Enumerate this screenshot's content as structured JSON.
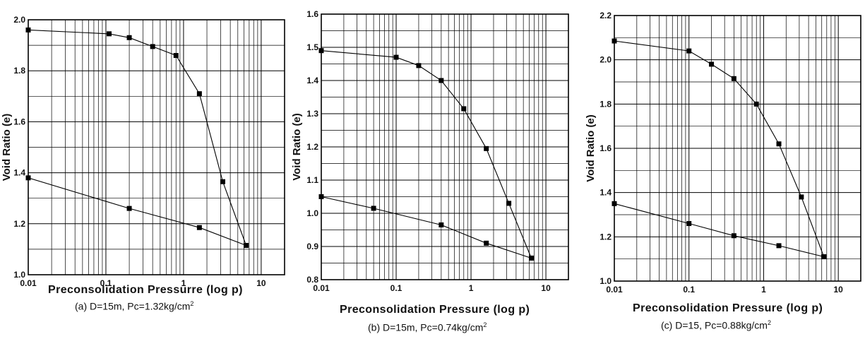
{
  "chart_data": [
    {
      "type": "line",
      "xscale": "log",
      "xlim": [
        0.01,
        20
      ],
      "ylim": [
        1.0,
        2.0
      ],
      "xticks": [
        "0.01",
        "0.1",
        "1",
        "10"
      ],
      "yticks": [
        "1.0",
        "1.2",
        "1.4",
        "1.6",
        "1.8",
        "2.0"
      ],
      "ylabel": "Void Ratio (e)",
      "xlabel": "Preconsolidation Pressurre (log p)",
      "caption": "(a) D=15m, Pc=1.32kg/cm",
      "caption_sup": "2",
      "grid": true,
      "series": [
        {
          "x": [
            0.01,
            0.11,
            0.2,
            0.4,
            0.8,
            1.6,
            3.2,
            6.4
          ],
          "y": [
            1.96,
            1.945,
            1.93,
            1.895,
            1.86,
            1.71,
            1.365,
            1.115
          ]
        },
        {
          "x": [
            0.01,
            0.2,
            1.6,
            6.4
          ],
          "y": [
            1.38,
            1.26,
            1.185,
            1.115
          ]
        }
      ]
    },
    {
      "type": "line",
      "xscale": "log",
      "xlim": [
        0.01,
        20
      ],
      "ylim": [
        0.8,
        1.6
      ],
      "xticks": [
        "0.01",
        "0.1",
        "1",
        "10"
      ],
      "yticks": [
        "0.8",
        "0.9",
        "1.0",
        "1.1",
        "1.2",
        "1.3",
        "1.4",
        "1.5",
        "1.6"
      ],
      "ylabel": "Void Ratio (e)",
      "xlabel": "Preconsolidation Pressure (log p)",
      "caption": "(b) D=15m, Pc=0.74kg/cm",
      "caption_sup": "2",
      "grid": true,
      "series": [
        {
          "x": [
            0.01,
            0.1,
            0.2,
            0.4,
            0.8,
            1.6,
            3.2,
            6.4
          ],
          "y": [
            1.49,
            1.47,
            1.445,
            1.4,
            1.315,
            1.195,
            1.03,
            0.865
          ]
        },
        {
          "x": [
            0.01,
            0.05,
            0.4,
            1.6,
            6.4
          ],
          "y": [
            1.05,
            1.015,
            0.965,
            0.91,
            0.865
          ]
        }
      ]
    },
    {
      "type": "line",
      "xscale": "log",
      "xlim": [
        0.01,
        20
      ],
      "ylim": [
        1.0,
        2.2
      ],
      "xticks": [
        "0.01",
        "0.1",
        "1",
        "10"
      ],
      "yticks": [
        "1.0",
        "1.2",
        "1.4",
        "1.6",
        "1.8",
        "2.0",
        "2.2"
      ],
      "ylabel": "Void Ratio (e)",
      "xlabel": "Preconsolidation Pressure (log p)",
      "caption": "(c) D=15, Pc=0.88kg/cm",
      "caption_sup": "2",
      "grid": true,
      "series": [
        {
          "x": [
            0.01,
            0.1,
            0.2,
            0.4,
            0.8,
            1.6,
            3.2,
            6.4
          ],
          "y": [
            2.085,
            2.04,
            1.98,
            1.915,
            1.8,
            1.62,
            1.38,
            1.11
          ]
        },
        {
          "x": [
            0.01,
            0.1,
            0.4,
            1.6,
            6.4
          ],
          "y": [
            1.35,
            1.26,
            1.205,
            1.16,
            1.11
          ]
        }
      ]
    }
  ]
}
